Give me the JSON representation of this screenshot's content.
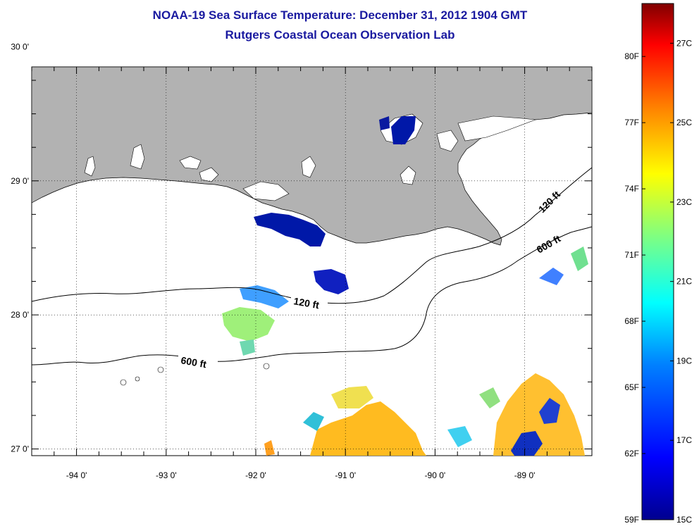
{
  "header": {
    "title": "NOAA-19 Sea Surface Temperature:  December 31, 2012 1904 GMT",
    "subtitle": "Rutgers Coastal Ocean Observation Lab"
  },
  "map": {
    "lon_range": [
      -94.5,
      -88.25
    ],
    "lat_range": [
      26.95,
      29.85
    ],
    "lat_ticks": [
      {
        "value": 30,
        "label": "30 0'"
      },
      {
        "value": 29,
        "label": "29 0'"
      },
      {
        "value": 28,
        "label": "28 0'"
      },
      {
        "value": 27,
        "label": "27 0'"
      }
    ],
    "lon_ticks": [
      {
        "value": -94,
        "label": "-94 0'"
      },
      {
        "value": -93,
        "label": "-93 0'"
      },
      {
        "value": -92,
        "label": "-92 0'"
      },
      {
        "value": -91,
        "label": "-91 0'"
      },
      {
        "value": -90,
        "label": "-90 0'"
      },
      {
        "value": -89,
        "label": "-89 0'"
      }
    ],
    "grid": true,
    "land_color": "#b2b2b2",
    "contour_labels": {
      "c120a": "120 ft",
      "c120b": "120 ft",
      "c600a": "600 ft",
      "c600b": "600 ft"
    }
  },
  "colorbar": {
    "range_c": [
      15,
      28
    ],
    "colors": [
      "#00008f",
      "#0000ff",
      "#0080ff",
      "#00ffff",
      "#80ff80",
      "#ffff00",
      "#ff8000",
      "#ff0000",
      "#800000"
    ],
    "fahrenheit_labels": [
      "59F",
      "62F",
      "65F",
      "68F",
      "71F",
      "74F",
      "77F",
      "80F"
    ],
    "celsius_labels": [
      "15C",
      "17C",
      "19C",
      "21C",
      "23C",
      "25C",
      "27C"
    ]
  }
}
